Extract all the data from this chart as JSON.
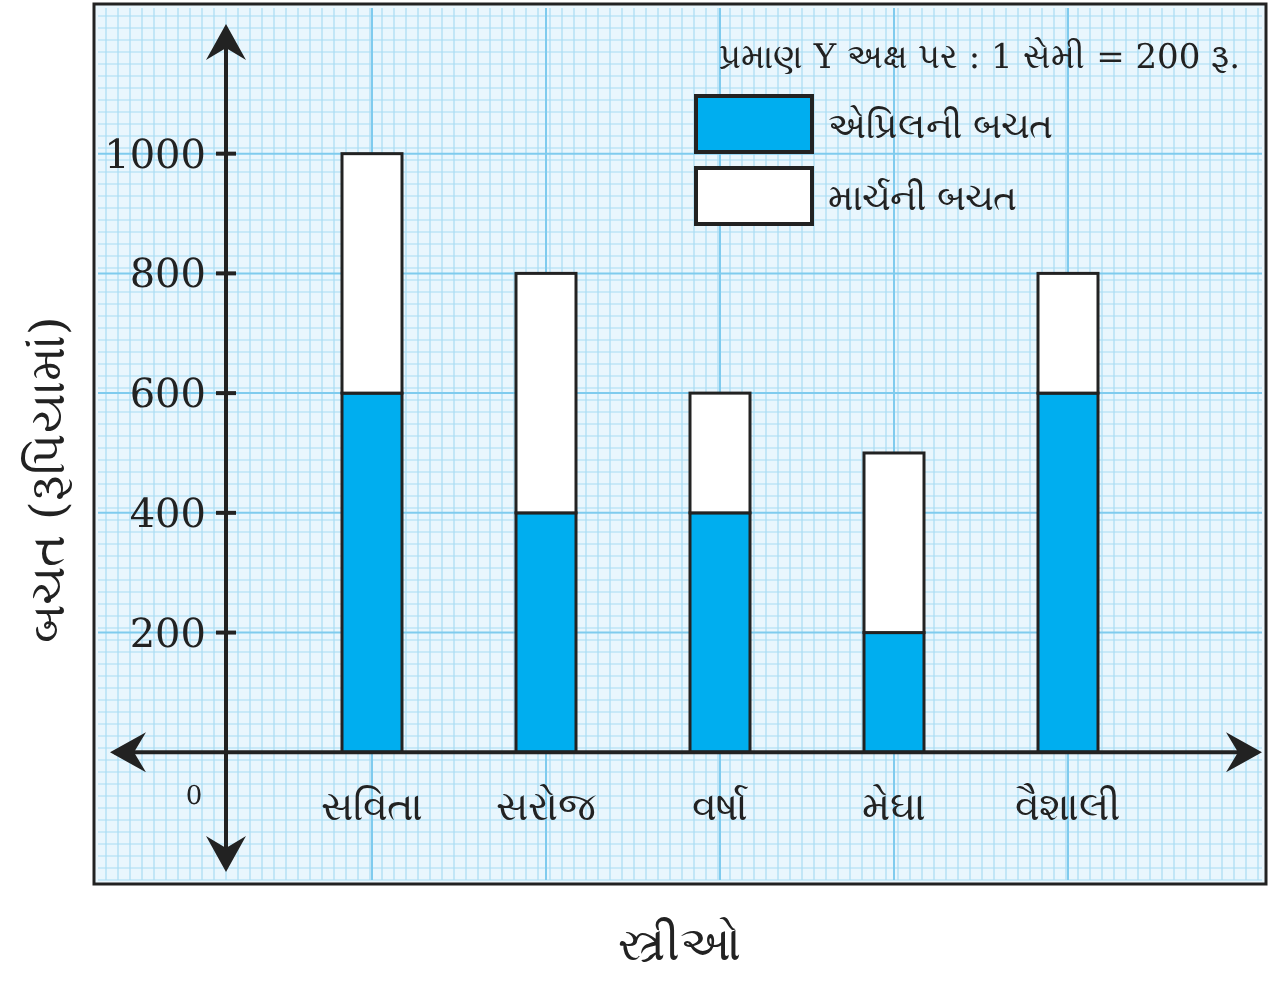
{
  "chart_data": {
    "type": "bar",
    "stacked": true,
    "categories": [
      "સવિતા",
      "સરોજ",
      "વર્ષા",
      "મેઘા",
      "વૈશાલી"
    ],
    "series": [
      {
        "name": "એપ્રિલની બચત",
        "color": "#00aeef",
        "values": [
          600,
          400,
          400,
          200,
          600
        ]
      },
      {
        "name": "માર્ચની બચત",
        "color": "#ffffff",
        "values": [
          400,
          400,
          200,
          300,
          200
        ]
      }
    ],
    "xlabel": "સ્ત્રીઓ",
    "ylabel": "બચત (રૂપિયામાં)",
    "annotations": [
      "પ્રમાણ Y અક્ષ પર : 1 સેમી = 200 રૂ.",
      "0"
    ],
    "ylim": [
      -220,
      1250
    ],
    "yticks": [
      200,
      400,
      600,
      800,
      1000
    ],
    "legend": "top right",
    "grid": true
  }
}
